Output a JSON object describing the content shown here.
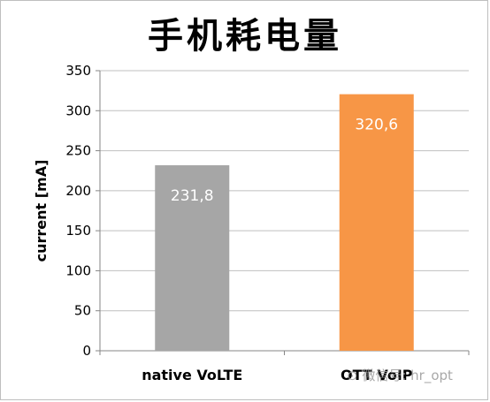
{
  "chart_data": {
    "type": "bar",
    "title": "手机耗电量",
    "categories": [
      "native VoLTE",
      "OTT VoIP"
    ],
    "values": [
      231.8,
      320.6
    ],
    "data_labels": [
      "231,8",
      "320,6"
    ],
    "colors": [
      "#a6a6a6",
      "#f79646"
    ],
    "xlabel": "",
    "ylabel": "current [mA]",
    "ylim": [
      0,
      350
    ],
    "yticks": [
      0,
      50,
      100,
      150,
      200,
      250,
      300,
      350
    ],
    "grid": "horizontal"
  },
  "watermark": {
    "text": "微信号: hr_opt"
  }
}
